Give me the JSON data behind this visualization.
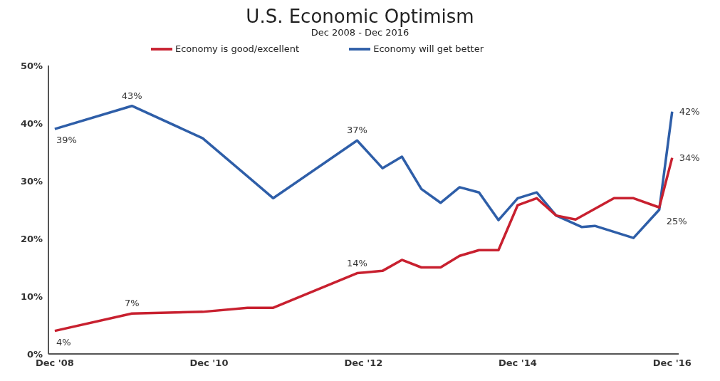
{
  "chart_data": {
    "type": "line",
    "title": "U.S. Economic Optimism",
    "subtitle": "Dec 2008 - Dec 2016",
    "xlim": [
      "2008-11",
      "2017-01"
    ],
    "xticks": [
      {
        "value": "2008-12",
        "label": "Dec '08"
      },
      {
        "value": "2010-12",
        "label": "Dec '10"
      },
      {
        "value": "2012-12",
        "label": "Dec '12"
      },
      {
        "value": "2014-12",
        "label": "Dec '14"
      },
      {
        "value": "2016-12",
        "label": "Dec '16"
      }
    ],
    "ylim": [
      0,
      50
    ],
    "yticks": [
      {
        "value": 0,
        "label": "0%"
      },
      {
        "value": 10,
        "label": "10%"
      },
      {
        "value": 20,
        "label": "20%"
      },
      {
        "value": 30,
        "label": "30%"
      },
      {
        "value": 40,
        "label": "40%"
      },
      {
        "value": 50,
        "label": "50%"
      }
    ],
    "grid": false,
    "legend": "top",
    "marker": "none",
    "line_style": "solid",
    "series": [
      {
        "name": "Economy will get better",
        "color": "#2e5ea8",
        "x": [
          "2008-12",
          "2009-12",
          "2010-11",
          "2011-10",
          "2012-11",
          "2013-03",
          "2013-06",
          "2013-09",
          "2013-12",
          "2014-03",
          "2014-06",
          "2014-09",
          "2014-12",
          "2015-03",
          "2015-06",
          "2015-10",
          "2015-12",
          "2016-06",
          "2016-10",
          "2016-12"
        ],
        "values": [
          39,
          43,
          37.4,
          27,
          37,
          32.2,
          34.2,
          28.6,
          26.2,
          28.9,
          28,
          23.2,
          27,
          28,
          24,
          22,
          22.2,
          20.1,
          25,
          42
        ],
        "value_labels": [
          "39%",
          "43%",
          null,
          null,
          "37%",
          null,
          null,
          null,
          null,
          null,
          null,
          null,
          null,
          null,
          null,
          null,
          null,
          null,
          "25%",
          "42%"
        ]
      },
      {
        "name": "Economy is good/excellent",
        "color": "#c8202f",
        "x": [
          "2008-12",
          "2009-12",
          "2010-11",
          "2011-06",
          "2011-10",
          "2012-11",
          "2013-03",
          "2013-06",
          "2013-09",
          "2013-12",
          "2014-03",
          "2014-06",
          "2014-09",
          "2014-12",
          "2015-03",
          "2015-06",
          "2015-09",
          "2016-03",
          "2016-06",
          "2016-10",
          "2016-12"
        ],
        "values": [
          4,
          7,
          7.3,
          8,
          8,
          14,
          14.4,
          16.3,
          15,
          15,
          17,
          18,
          18,
          25.8,
          27,
          24,
          23.3,
          27,
          27,
          25.4,
          34
        ],
        "value_labels": [
          "4%",
          "7%",
          null,
          null,
          null,
          "14%",
          null,
          null,
          null,
          null,
          null,
          null,
          null,
          null,
          null,
          null,
          null,
          null,
          null,
          null,
          "34%"
        ]
      }
    ]
  }
}
